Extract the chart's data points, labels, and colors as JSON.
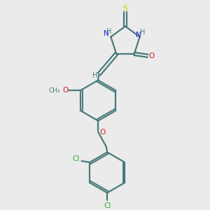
{
  "bg_color": "#ebebeb",
  "bond_color": "#4a7a7a",
  "n_color": "#2828cc",
  "o_color": "#cc2020",
  "s_color": "#cccc00",
  "cl_color": "#30aa30",
  "lw": 1.6,
  "fig_size": [
    3.0,
    3.0
  ],
  "dpi": 100,
  "xlim": [
    0,
    10
  ],
  "ylim": [
    0,
    10
  ]
}
